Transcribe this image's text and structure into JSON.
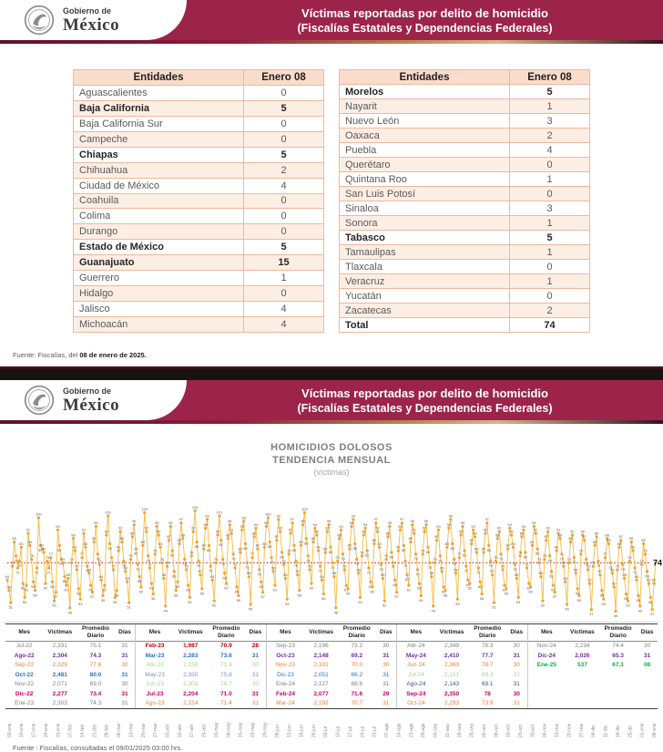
{
  "header": {
    "logo_line1": "Gobierno de",
    "logo_line2": "México",
    "title_line1": "Víctimas reportadas por delito de homicidio",
    "title_line2": "(Fiscalías Estatales y Dependencias Federales)"
  },
  "colors": {
    "guinda": "#9d2449",
    "table_border": "#efb79c",
    "table_header_bg": "#fbdcca",
    "table_stripe_bg": "#fdeee4",
    "line_gold": "#f5b942",
    "dot_gold": "#f0a22e",
    "average_red": "#c00000"
  },
  "state_table": {
    "col_entidad": "Entidades",
    "col_valor": "Enero 08",
    "left": [
      {
        "name": "Aguascalientes",
        "value": "0",
        "bold": false
      },
      {
        "name": "Baja California",
        "value": "5",
        "bold": true
      },
      {
        "name": "Baja California Sur",
        "value": "0",
        "bold": false
      },
      {
        "name": "Campeche",
        "value": "0",
        "bold": false
      },
      {
        "name": "Chiapas",
        "value": "5",
        "bold": true
      },
      {
        "name": "Chihuahua",
        "value": "2",
        "bold": false
      },
      {
        "name": "Ciudad de México",
        "value": "4",
        "bold": false
      },
      {
        "name": "Coahuila",
        "value": "0",
        "bold": false
      },
      {
        "name": "Colima",
        "value": "0",
        "bold": false
      },
      {
        "name": "Durango",
        "value": "0",
        "bold": false
      },
      {
        "name": "Estado de México",
        "value": "5",
        "bold": true
      },
      {
        "name": "Guanajuato",
        "value": "15",
        "bold": true
      },
      {
        "name": "Guerrero",
        "value": "1",
        "bold": false
      },
      {
        "name": "Hidalgo",
        "value": "0",
        "bold": false
      },
      {
        "name": "Jalisco",
        "value": "4",
        "bold": false
      },
      {
        "name": "Michoacán",
        "value": "4",
        "bold": false
      }
    ],
    "right": [
      {
        "name": "Morelos",
        "value": "5",
        "bold": true
      },
      {
        "name": "Nayarit",
        "value": "1",
        "bold": false
      },
      {
        "name": "Nuevo León",
        "value": "3",
        "bold": false
      },
      {
        "name": "Oaxaca",
        "value": "2",
        "bold": false
      },
      {
        "name": "Puebla",
        "value": "4",
        "bold": false
      },
      {
        "name": "Querétaro",
        "value": "0",
        "bold": false
      },
      {
        "name": "Quintana Roo",
        "value": "1",
        "bold": false
      },
      {
        "name": "San Luis Potosí",
        "value": "0",
        "bold": false
      },
      {
        "name": "Sinaloa",
        "value": "3",
        "bold": false
      },
      {
        "name": "Sonora",
        "value": "1",
        "bold": false
      },
      {
        "name": "Tabasco",
        "value": "5",
        "bold": true
      },
      {
        "name": "Tamaulipas",
        "value": "1",
        "bold": false
      },
      {
        "name": "Tlaxcala",
        "value": "0",
        "bold": false
      },
      {
        "name": "Veracruz",
        "value": "1",
        "bold": false
      },
      {
        "name": "Yucatán",
        "value": "0",
        "bold": false
      },
      {
        "name": "Zacatecas",
        "value": "2",
        "bold": false
      },
      {
        "name": "Total",
        "value": "74",
        "bold": true
      }
    ]
  },
  "fuente_top": {
    "prefix": "Fuente: Fiscalías, del ",
    "bold": "08 de enero de 2025."
  },
  "chart_data": {
    "type": "line",
    "title": "HOMICIDIOS DOLOSOS",
    "subtitle": "TENDENCIA MENSUAL",
    "unit_label": "(víctimas)",
    "ylim": [
      40,
      110
    ],
    "grid": false,
    "average_line": 74,
    "last_point_label": "74",
    "x_tick_labels": [
      "03-ene",
      "10-ene",
      "17-ene",
      "24-ene",
      "31-ene",
      "07-feb",
      "14-feb",
      "21-feb",
      "28-feb",
      "06-mar",
      "13-mar",
      "20-mar",
      "27-mar",
      "03-abr",
      "10-abr",
      "17-abr",
      "24-abr",
      "01-may",
      "08-may",
      "15-may",
      "22-may",
      "29-may",
      "05-jun",
      "12-jun",
      "19-jun",
      "26-jun",
      "03-jul",
      "10-jul",
      "17-jul",
      "24-jul",
      "31-jul",
      "07-ago",
      "14-ago",
      "21-ago",
      "28-ago",
      "04-sep",
      "11-sep",
      "18-sep",
      "25-sep",
      "02-oct",
      "09-oct",
      "16-oct",
      "23-oct",
      "30-oct",
      "06-nov",
      "13-nov",
      "20-nov",
      "27-nov",
      "04-dic",
      "11-dic",
      "18-dic",
      "25-dic",
      "01-ene",
      "08-ene"
    ],
    "series": [
      {
        "name": "víctimas diarias",
        "values": [
          64,
          58,
          51,
          72,
          86,
          78,
          71,
          75,
          83,
          62,
          54,
          61,
          91,
          84,
          76,
          63,
          58,
          71,
          100,
          84,
          82,
          80,
          62,
          75,
          71,
          77,
          63,
          52,
          57,
          93,
          84,
          76,
          74,
          66,
          61,
          65,
          48,
          74,
          88,
          81,
          70,
          59,
          53,
          77,
          91,
          83,
          72,
          68,
          61,
          57,
          86,
          95,
          79,
          73,
          64,
          55,
          61,
          90,
          101,
          85,
          77,
          70,
          54,
          58,
          81,
          92,
          86,
          75,
          69,
          63,
          51,
          76,
          89,
          96,
          82,
          73,
          66,
          60,
          84,
          103,
          92,
          78,
          71,
          62,
          56,
          79,
          95,
          90,
          83,
          74,
          65,
          49,
          72,
          87,
          95,
          81,
          69,
          58,
          63,
          85,
          97,
          88,
          76,
          70,
          61,
          54,
          78,
          92,
          104,
          86,
          75,
          67,
          59,
          82,
          94,
          99,
          84,
          72,
          64,
          52,
          74,
          90,
          101,
          87,
          76,
          68,
          62,
          88,
          96,
          91,
          79,
          71,
          60,
          55,
          80,
          93,
          98,
          85,
          74,
          66,
          50,
          77,
          89,
          94,
          82,
          70,
          63,
          57,
          83,
          95,
          100,
          86,
          77,
          69,
          61,
          87,
          99,
          92,
          80,
          73,
          65,
          53,
          79,
          91,
          97,
          84,
          75,
          67,
          58,
          84,
          96,
          103,
          88,
          78,
          70,
          62,
          86,
          94,
          90,
          81,
          72,
          64,
          56,
          80,
          92,
          96,
          83,
          74,
          66,
          48,
          75,
          88,
          93,
          79,
          70,
          61,
          59,
          82,
          95,
          99,
          85,
          76,
          68,
          54,
          78,
          90,
          94,
          81,
          71,
          63,
          60,
          85,
          97,
          92,
          83,
          73,
          65,
          52,
          76,
          89,
          95,
          80,
          72,
          64,
          57,
          81,
          93,
          97,
          84,
          75,
          67,
          61,
          86,
          96,
          91,
          79,
          70,
          62,
          55,
          79,
          92,
          96,
          83,
          74,
          66,
          49,
          74,
          87,
          93,
          78,
          69,
          60,
          58,
          83,
          94,
          99,
          85,
          76,
          68,
          53,
          77,
          90,
          95,
          81,
          72,
          64,
          62,
          85,
          93,
          89,
          80,
          71,
          63,
          56,
          80,
          91,
          97,
          84,
          75,
          67,
          51,
          75,
          88,
          92,
          79,
          70,
          61,
          59,
          82,
          94,
          90,
          83,
          73,
          65,
          54,
          78,
          89,
          93,
          80,
          71,
          62,
          60,
          84,
          95,
          91,
          82,
          74,
          66,
          52,
          76,
          87,
          92,
          78,
          69,
          61,
          57,
          81,
          91,
          88,
          79,
          72,
          63,
          50,
          74,
          86,
          90,
          77,
          68,
          59,
          55,
          79,
          90,
          87,
          76,
          70,
          62,
          47,
          72,
          84,
          89,
          75,
          67,
          58,
          53,
          77,
          88,
          85,
          74,
          68,
          60,
          46,
          70,
          83,
          87,
          73,
          65,
          56,
          52,
          75,
          86,
          81,
          71,
          64,
          55,
          49,
          73,
          85,
          79,
          69,
          62,
          54,
          47,
          62,
          74
        ]
      }
    ],
    "monthly_table": {
      "headers": [
        "Mes",
        "Víctimas",
        "Promedio Diario",
        "Días"
      ],
      "groups": [
        [
          {
            "mes": "Jul-22",
            "victimas": "2,331",
            "promedio": "75.1",
            "dias": "31",
            "color": "#7f7f7f",
            "bold": false
          },
          {
            "mes": "Ago-22",
            "victimas": "2,304",
            "promedio": "74.3",
            "dias": "31",
            "color": "#7030a0",
            "bold": true
          },
          {
            "mes": "Sep-22",
            "victimas": "2,329",
            "promedio": "77.6",
            "dias": "30",
            "color": "#ed7d31",
            "bold": false
          },
          {
            "mes": "Oct-22",
            "victimas": "2,481",
            "promedio": "80.0",
            "dias": "31",
            "color": "#2e75b6",
            "bold": true
          },
          {
            "mes": "Nov-22",
            "victimas": "2,071",
            "promedio": "69.0",
            "dias": "30",
            "color": "#7f7f7f",
            "bold": false
          },
          {
            "mes": "Dic-22",
            "victimas": "2,277",
            "promedio": "73.4",
            "dias": "31",
            "color": "#cc0066",
            "bold": true
          },
          {
            "mes": "Ene-23",
            "victimas": "2,303",
            "promedio": "74.3",
            "dias": "31",
            "color": "#7f7f7f",
            "bold": false
          }
        ],
        [
          {
            "mes": "Feb-23",
            "victimas": "1,987",
            "promedio": "70.9",
            "dias": "28",
            "color": "#c00000",
            "bold": true
          },
          {
            "mes": "Mar-23",
            "victimas": "2,283",
            "promedio": "73.6",
            "dias": "31",
            "color": "#2e75b6",
            "bold": true
          },
          {
            "mes": "Abr-23",
            "victimas": "2,159",
            "promedio": "71.9",
            "dias": "30",
            "color": "#a9d18e",
            "bold": false
          },
          {
            "mes": "May-23",
            "victimas": "2,350",
            "promedio": "75.8",
            "dias": "31",
            "color": "#8496b0",
            "bold": false
          },
          {
            "mes": "Jun-23",
            "victimas": "2,303",
            "promedio": "76.7",
            "dias": "30",
            "color": "#a9d18e",
            "bold": false
          },
          {
            "mes": "Jul-23",
            "victimas": "2,204",
            "promedio": "71.0",
            "dias": "31",
            "color": "#cc0066",
            "bold": true
          },
          {
            "mes": "Ago-23",
            "victimas": "2,214",
            "promedio": "71.4",
            "dias": "31",
            "color": "#ed7d31",
            "bold": false
          }
        ],
        [
          {
            "mes": "Sep-23",
            "victimas": "2,196",
            "promedio": "73.2",
            "dias": "30",
            "color": "#7f7f7f",
            "bold": false
          },
          {
            "mes": "Oct-23",
            "victimas": "2,148",
            "promedio": "69.2",
            "dias": "31",
            "color": "#7030a0",
            "bold": true
          },
          {
            "mes": "Nov-23",
            "victimas": "2,101",
            "promedio": "70.0",
            "dias": "30",
            "color": "#ed7d31",
            "bold": false
          },
          {
            "mes": "Dic-23",
            "victimas": "2,051",
            "promedio": "66.2",
            "dias": "31",
            "color": "#2e75b6",
            "bold": false
          },
          {
            "mes": "Ene-24",
            "victimas": "2,127",
            "promedio": "68.6",
            "dias": "31",
            "color": "#7f7f7f",
            "bold": false
          },
          {
            "mes": "Feb-24",
            "victimas": "2,077",
            "promedio": "71.6",
            "dias": "29",
            "color": "#cc0066",
            "bold": true
          },
          {
            "mes": "Mar-24",
            "victimas": "2,192",
            "promedio": "70.7",
            "dias": "31",
            "color": "#ed7d31",
            "bold": false
          }
        ],
        [
          {
            "mes": "Abr-24",
            "victimas": "2,349",
            "promedio": "78.3",
            "dias": "30",
            "color": "#7f7f7f",
            "bold": false
          },
          {
            "mes": "May-24",
            "victimas": "2,410",
            "promedio": "77.7",
            "dias": "31",
            "color": "#7030a0",
            "bold": true
          },
          {
            "mes": "Jun-24",
            "victimas": "2,363",
            "promedio": "78.7",
            "dias": "30",
            "color": "#ed7d31",
            "bold": false
          },
          {
            "mes": "Jul-24",
            "victimas": "2,151",
            "promedio": "69.3",
            "dias": "31",
            "color": "#a9d18e",
            "bold": false
          },
          {
            "mes": "Ago-24",
            "victimas": "2,143",
            "promedio": "69.1",
            "dias": "31",
            "color": "#44546a",
            "bold": false
          },
          {
            "mes": "Sep-24",
            "victimas": "2,350",
            "promedio": "78",
            "dias": "30",
            "color": "#cc0066",
            "bold": true
          },
          {
            "mes": "Oct-24",
            "victimas": "2,293",
            "promedio": "73.9",
            "dias": "31",
            "color": "#ed7d31",
            "bold": false
          }
        ],
        [
          {
            "mes": "Nov-24",
            "victimas": "2,234",
            "promedio": "74.4",
            "dias": "30",
            "color": "#7f7f7f",
            "bold": false
          },
          {
            "mes": "Dic-24",
            "victimas": "2,026",
            "promedio": "65.3",
            "dias": "31",
            "color": "#7030a0",
            "bold": true
          },
          {
            "mes": "Ene-25",
            "victimas": "537",
            "promedio": "67.1",
            "dias": "08",
            "color": "#00b050",
            "bold": true
          }
        ]
      ]
    }
  },
  "fuente_bottom": "Fuente : Fiscalías, consultadas el 09/01/2025 03:00 hrs."
}
